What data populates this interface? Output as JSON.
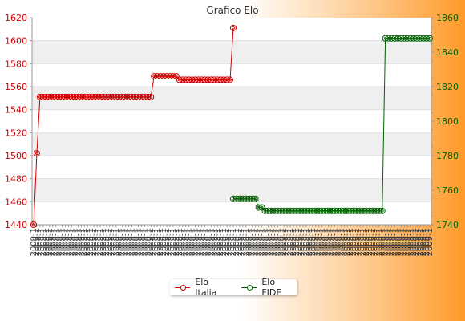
{
  "chart_data": {
    "type": "line",
    "title": "Grafico Elo",
    "x_tick_label_sample": "2009-1",
    "left_axis": {
      "ticks": [
        1440,
        1460,
        1480,
        1500,
        1520,
        1540,
        1560,
        1580,
        1600,
        1620
      ],
      "ylim": [
        1440,
        1620
      ],
      "color": "#cc0000"
    },
    "right_axis": {
      "ticks": [
        1740,
        1760,
        1780,
        1800,
        1820,
        1840,
        1860
      ],
      "ylim": [
        1740,
        1860
      ],
      "color": "#006600"
    },
    "grid": "horizontal bands",
    "legend": "bottom-center",
    "series": [
      {
        "name": "Elo Italia",
        "axis": "left",
        "color": "#cc0000",
        "segments": [
          {
            "value": 1440,
            "count": 1
          },
          {
            "value": 1502,
            "count": 1
          },
          {
            "value": 1551,
            "count": 36
          },
          {
            "value": 1569,
            "count": 8
          },
          {
            "value": 1566,
            "count": 17
          },
          {
            "value": 1611,
            "count": 1
          }
        ]
      },
      {
        "name": "Elo FIDE",
        "axis": "right",
        "start_index": 63,
        "color": "#006600",
        "segments": [
          {
            "value": 1755,
            "count": 8
          },
          {
            "value": 1750,
            "count": 2
          },
          {
            "value": 1748,
            "count": 38
          },
          {
            "value": 1848,
            "count": 15
          }
        ]
      }
    ]
  },
  "legend": {
    "items": [
      {
        "label": "Elo Italia",
        "color": "#cc0000"
      },
      {
        "label": "Elo FIDE",
        "color": "#006600"
      }
    ]
  }
}
